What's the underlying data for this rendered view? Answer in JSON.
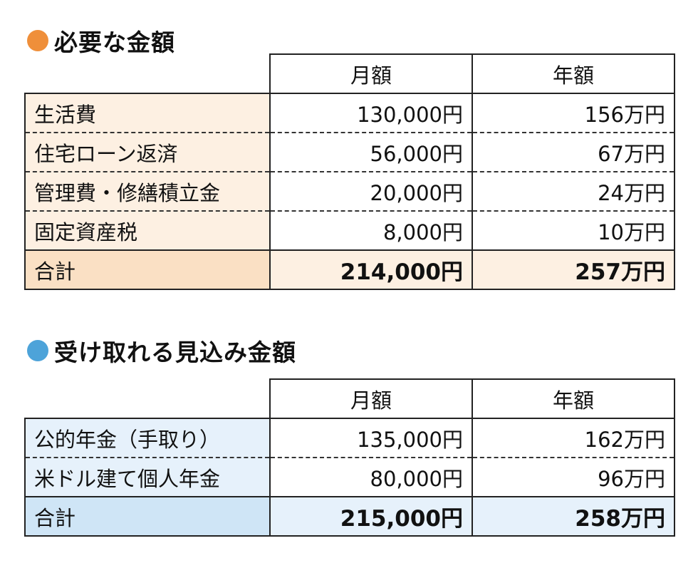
{
  "expenses": {
    "title": "必要な金額",
    "dot_color": "#ef8f3a",
    "headers": [
      "月額",
      "年額"
    ],
    "rows": [
      {
        "label": "生活費",
        "monthly": "130,000円",
        "yearly": "156万円"
      },
      {
        "label": "住宅ローン返済",
        "monthly": "56,000円",
        "yearly": "67万円"
      },
      {
        "label": "管理費・修繕積立金",
        "monthly": "20,000円",
        "yearly": "24万円"
      },
      {
        "label": "固定資産税",
        "monthly": "8,000円",
        "yearly": "10万円"
      }
    ],
    "total": {
      "label": "合計",
      "monthly": "214,000円",
      "yearly": "257万円"
    }
  },
  "income": {
    "title": "受け取れる見込み金額",
    "dot_color": "#4da3d9",
    "headers": [
      "月額",
      "年額"
    ],
    "rows": [
      {
        "label": "公的年金（手取り）",
        "monthly": "135,000円",
        "yearly": "162万円"
      },
      {
        "label": "米ドル建て個人年金",
        "monthly": "80,000円",
        "yearly": "96万円"
      }
    ],
    "total": {
      "label": "合計",
      "monthly": "215,000円",
      "yearly": "258万円"
    }
  }
}
